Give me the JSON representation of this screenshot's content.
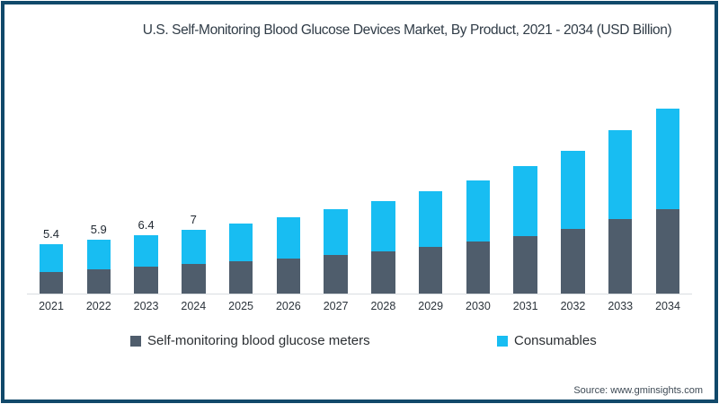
{
  "title": "U.S. Self-Monitoring Blood Glucose Devices Market, By Product, 2021 - 2034 (USD Billion)",
  "source": "Source: www.gminsights.com",
  "legend": {
    "meters": "Self-monitoring blood glucose meters",
    "consumables": "Consumables"
  },
  "colors": {
    "meters": "#4f5d6c",
    "consumables": "#18bdf2",
    "frame_border": "#11496a",
    "axis_line": "#d9dde1"
  },
  "chart_data": {
    "type": "bar",
    "stacked": true,
    "title": "U.S. Self-Monitoring Blood Glucose Devices Market, By Product, 2021 - 2034 (USD Billion)",
    "unit": "USD Billion",
    "categories": [
      "2021",
      "2022",
      "2023",
      "2024",
      "2025",
      "2026",
      "2027",
      "2028",
      "2029",
      "2030",
      "2031",
      "2032",
      "2033",
      "2034"
    ],
    "series": [
      {
        "name": "Self-monitoring blood glucose meters",
        "color": "#4f5d6c",
        "values": [
          2.4,
          2.6,
          2.9,
          3.2,
          3.5,
          3.8,
          4.2,
          4.6,
          5.1,
          5.7,
          6.3,
          7.1,
          8.1,
          9.2
        ]
      },
      {
        "name": "Consumables",
        "color": "#18bdf2",
        "values": [
          3.0,
          3.3,
          3.5,
          3.8,
          4.1,
          4.5,
          5.0,
          5.5,
          6.1,
          6.7,
          7.6,
          8.5,
          9.7,
          11.0
        ]
      }
    ],
    "totals": [
      5.4,
      5.9,
      6.4,
      7.0,
      7.6,
      8.3,
      9.2,
      10.1,
      11.2,
      12.4,
      13.9,
      15.6,
      17.8,
      20.2
    ],
    "bar_value_labels": [
      "5.4",
      "5.9",
      "6.4",
      "7"
    ],
    "xlabel": "",
    "ylabel": "",
    "ylim": [
      0,
      21
    ],
    "gridlines": false,
    "y_axis_visible": false,
    "legend_position": "bottom"
  }
}
